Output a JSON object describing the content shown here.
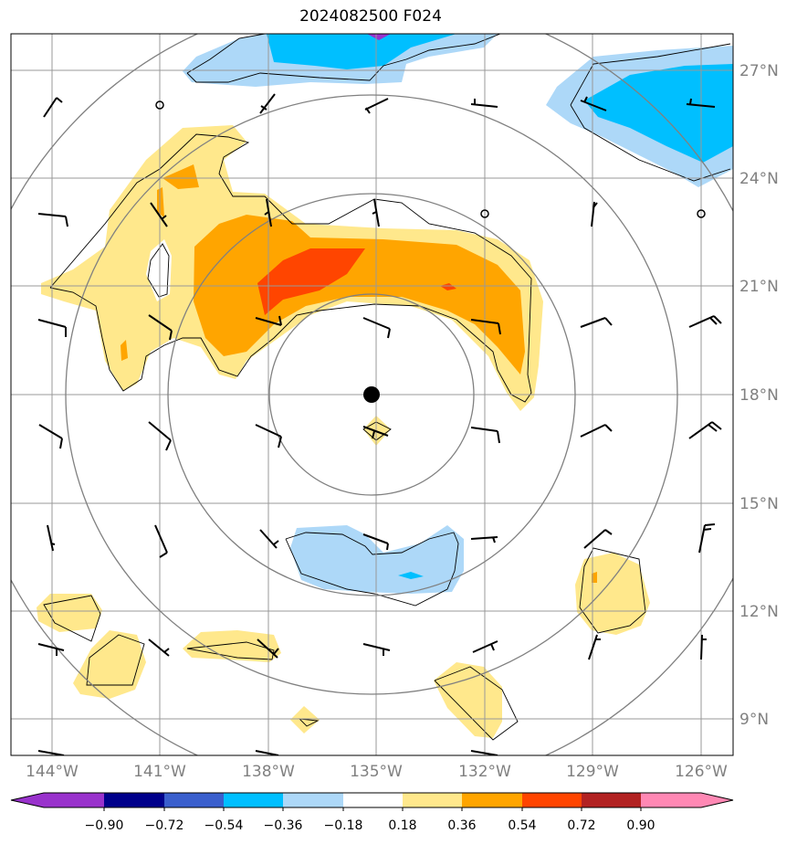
{
  "title": "2024082500 F024",
  "map": {
    "lat_labels": [
      "27°N",
      "24°N",
      "21°N",
      "18°N",
      "15°N",
      "12°N",
      "9°N"
    ],
    "lat_values": [
      27,
      24,
      21,
      18,
      15,
      12,
      9
    ],
    "lon_labels": [
      "144°W",
      "141°W",
      "138°W",
      "135°W",
      "132°W",
      "129°W",
      "126°W"
    ],
    "lon_values": [
      -144,
      -141,
      -138,
      -135,
      -132,
      -129,
      -126
    ],
    "extent": {
      "lon_min": -145.1,
      "lon_max": -125.1,
      "lat_min": 8.0,
      "lat_max": 28.0
    },
    "center": {
      "lon": -135.0,
      "lat": 18.0
    },
    "range_rings_deg": [
      3,
      6,
      9,
      12
    ],
    "gridlines": true
  },
  "colorbar": {
    "ticks": [
      "−0.90",
      "−0.72",
      "−0.54",
      "−0.36",
      "−0.18",
      "0.18",
      "0.36",
      "0.54",
      "0.72",
      "0.90"
    ],
    "colors": [
      "#9932cc",
      "#00008b",
      "#3a5fcd",
      "#00bfff",
      "#add8f8",
      "#ffffff",
      "#ffe88c",
      "#ffa500",
      "#ff4500",
      "#b22222",
      "#ff88b4"
    ],
    "extend": "both"
  },
  "colors": {
    "grid": "#999999",
    "rings": "#808080",
    "label": "#808080"
  }
}
